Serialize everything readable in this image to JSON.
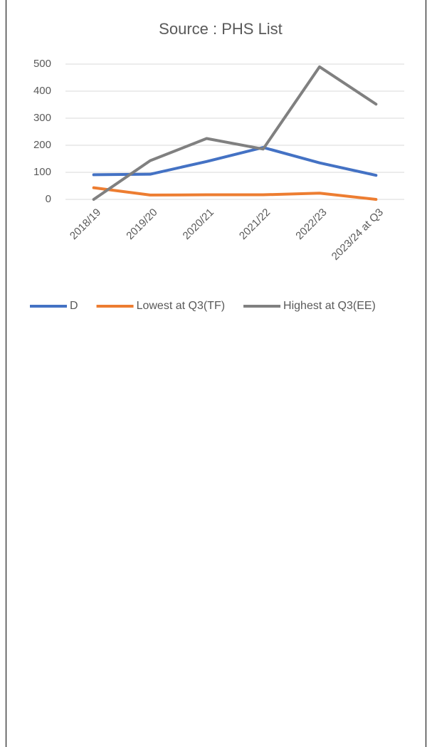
{
  "chart_data": {
    "type": "line",
    "title": "Source : PHS List",
    "categories": [
      "2018/19",
      "2019/20",
      "2020/21",
      "2021/22",
      "2022/23",
      "2023/24 at Q3"
    ],
    "series": [
      {
        "name": "D",
        "color": "#4472c4",
        "values": [
          91,
          93,
          140,
          192,
          135,
          89
        ]
      },
      {
        "name": "Lowest at Q3(TF)",
        "color": "#ed7d31",
        "values": [
          43,
          16,
          17,
          17,
          23,
          0
        ]
      },
      {
        "name": "Highest at Q3(EE)",
        "color": "#808080",
        "values": [
          0,
          143,
          225,
          186,
          490,
          352
        ]
      }
    ],
    "ylim": [
      0,
      500
    ],
    "yticks": [
      0,
      100,
      200,
      300,
      400,
      500
    ],
    "grid": true,
    "legend": "bottom"
  }
}
